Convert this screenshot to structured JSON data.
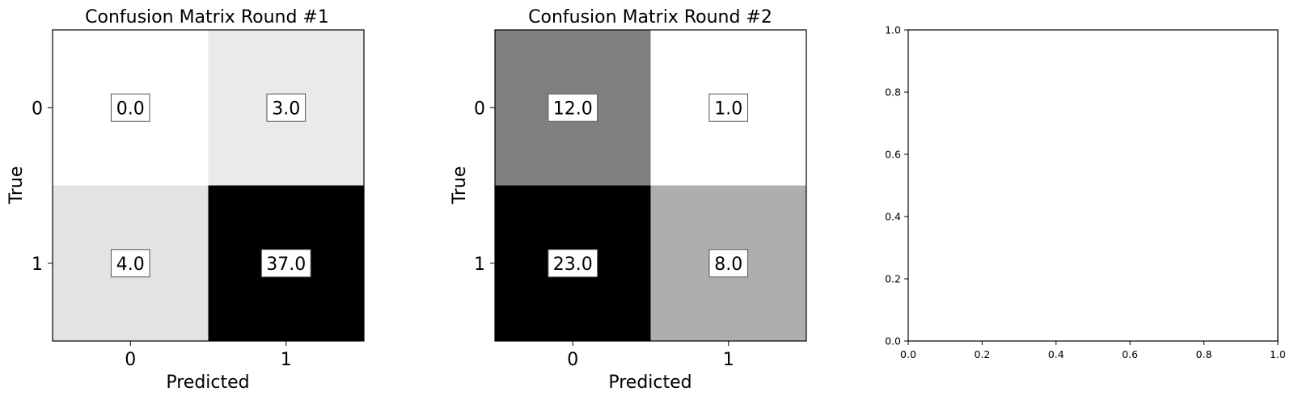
{
  "chart_data": [
    {
      "type": "heatmap",
      "title": "Confusion Matrix Round #1",
      "xlabel": "Predicted",
      "ylabel": "True",
      "x_ticks": [
        "0",
        "1"
      ],
      "y_ticks": [
        "0",
        "1"
      ],
      "values": [
        [
          0.0,
          3.0
        ],
        [
          4.0,
          37.0
        ]
      ],
      "cell_labels": [
        [
          "0.0",
          "3.0"
        ],
        [
          "4.0",
          "37.0"
        ]
      ],
      "colormap": "Greys",
      "color_low": "#ffffff",
      "color_high": "#000000"
    },
    {
      "type": "heatmap",
      "title": "Confusion Matrix Round #2",
      "xlabel": "Predicted",
      "ylabel": "True",
      "x_ticks": [
        "0",
        "1"
      ],
      "y_ticks": [
        "0",
        "1"
      ],
      "values": [
        [
          12.0,
          1.0
        ],
        [
          23.0,
          8.0
        ]
      ],
      "cell_labels": [
        [
          "12.0",
          "1.0"
        ],
        [
          "23.0",
          "8.0"
        ]
      ],
      "colormap": "Greys",
      "color_low": "#ffffff",
      "color_high": "#000000"
    },
    {
      "type": "scatter",
      "title": "",
      "xlabel": "",
      "ylabel": "",
      "xlim": [
        0.0,
        1.0
      ],
      "ylim": [
        0.0,
        1.0
      ],
      "x_ticks": [
        "0.0",
        "0.2",
        "0.4",
        "0.6",
        "0.8",
        "1.0"
      ],
      "y_ticks": [
        "0.0",
        "0.2",
        "0.4",
        "0.6",
        "0.8",
        "1.0"
      ],
      "series": []
    }
  ]
}
